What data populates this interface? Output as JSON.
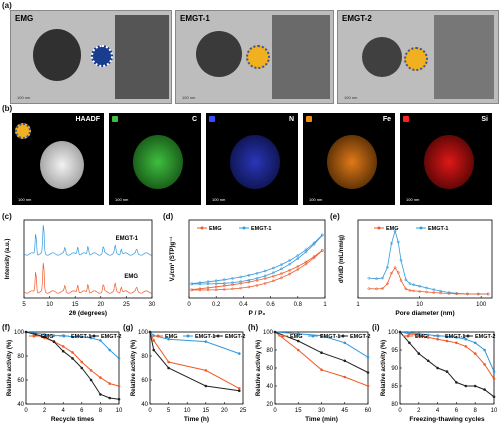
{
  "labels": {
    "a": "(a)",
    "b": "(b)",
    "c": "(c)",
    "d": "(d)",
    "e": "(e)",
    "f": "(f)",
    "g": "(g)",
    "h": "(h)",
    "i": "(i)"
  },
  "tem_panels": [
    {
      "title": "EMG",
      "scale": "100 nm"
    },
    {
      "title": "EMGT-1",
      "scale": "100 nm"
    },
    {
      "title": "EMGT-2",
      "scale": "100 nm"
    }
  ],
  "map_panels": [
    {
      "label": "HAADF",
      "scale": "100 nm",
      "color": "#ffffff"
    },
    {
      "label": "C",
      "scale": "100 nm",
      "color": "#3fbf3f"
    },
    {
      "label": "N",
      "scale": "100 nm",
      "color": "#3a4cff"
    },
    {
      "label": "Fe",
      "scale": "100 nm",
      "color": "#f08a1a"
    },
    {
      "label": "Si",
      "scale": "100 nm",
      "color": "#ff2020"
    }
  ],
  "colors": {
    "emg": "#f05a28",
    "emgt1": "#3399dd",
    "emgt2": "#222222"
  },
  "chart_data": [
    {
      "id": "c",
      "type": "line",
      "xlabel": "2θ (degrees)",
      "ylabel": "Intensity (a.u.)",
      "xlim": [
        5,
        30
      ],
      "xticks": [
        5,
        10,
        15,
        20,
        25,
        30
      ],
      "series": [
        {
          "name": "EMGT-1"
        },
        {
          "name": "EMG"
        }
      ]
    },
    {
      "id": "d",
      "type": "line",
      "xlabel": "P / P₀",
      "ylabel": "Vₐ/cm³ (STP)g⁻¹",
      "xlim": [
        0,
        1
      ],
      "xticks": [
        "0",
        "0.2",
        "0.4",
        "0.6",
        "0.8",
        "1"
      ],
      "series": [
        {
          "name": "EMG"
        },
        {
          "name": "EMGT-1"
        }
      ]
    },
    {
      "id": "e",
      "type": "line",
      "xlabel": "Pore diameter (nm)",
      "ylabel": "dV/dD (mL/nm/g)",
      "xscale": "log",
      "xticks": [
        "1",
        "10",
        "100"
      ],
      "series": [
        {
          "name": "EMG"
        },
        {
          "name": "EMGT-1"
        }
      ]
    },
    {
      "id": "f",
      "type": "line",
      "xlabel": "Recycle times",
      "ylabel": "Relative activity (%)",
      "xlim": [
        0,
        10
      ],
      "ylim": [
        40,
        100
      ],
      "xticks": [
        0,
        2,
        4,
        6,
        8,
        10
      ],
      "yticks": [
        40,
        60,
        80,
        100
      ],
      "series": [
        {
          "name": "EMG",
          "x": [
            0,
            1,
            2,
            3,
            4,
            5,
            6,
            7,
            8,
            9,
            10
          ],
          "values": [
            100,
            98,
            95,
            92,
            88,
            83,
            75,
            68,
            62,
            57,
            55
          ]
        },
        {
          "name": "EMGT-1",
          "x": [
            0,
            1,
            2,
            3,
            4,
            5,
            6,
            7,
            8,
            9,
            10
          ],
          "values": [
            100,
            99,
            98,
            97,
            97,
            96,
            96,
            95,
            93,
            85,
            78
          ]
        },
        {
          "name": "EMGT-2",
          "x": [
            0,
            1,
            2,
            3,
            4,
            5,
            6,
            7,
            8,
            9,
            10
          ],
          "values": [
            100,
            98,
            96,
            92,
            84,
            78,
            70,
            60,
            48,
            45,
            44
          ]
        }
      ]
    },
    {
      "id": "g",
      "type": "line",
      "xlabel": "Time (h)",
      "ylabel": "Relative activity (%)",
      "xlim": [
        0,
        25
      ],
      "ylim": [
        40,
        100
      ],
      "xticks": [
        0,
        5,
        10,
        15,
        20,
        25
      ],
      "yticks": [
        40,
        60,
        80,
        100
      ],
      "series": [
        {
          "name": "EMG",
          "x": [
            0,
            1,
            5,
            15,
            24
          ],
          "values": [
            100,
            93,
            75,
            68,
            53
          ]
        },
        {
          "name": "EMGT-1",
          "x": [
            0,
            1,
            5,
            15,
            24
          ],
          "values": [
            100,
            97,
            94,
            92,
            82
          ]
        },
        {
          "name": "EMGT-2",
          "x": [
            0,
            1,
            5,
            15,
            24
          ],
          "values": [
            100,
            85,
            70,
            55,
            51
          ]
        }
      ]
    },
    {
      "id": "h",
      "type": "line",
      "xlabel": "Time (min)",
      "ylabel": "Relative activity (%)",
      "xlim": [
        0,
        60
      ],
      "ylim": [
        20,
        100
      ],
      "xticks": [
        0,
        15,
        30,
        45,
        60
      ],
      "yticks": [
        20,
        40,
        60,
        80,
        100
      ],
      "series": [
        {
          "name": "EMG",
          "x": [
            0,
            15,
            30,
            45,
            60
          ],
          "values": [
            100,
            80,
            58,
            50,
            40
          ]
        },
        {
          "name": "EMGT-1",
          "x": [
            0,
            15,
            30,
            45,
            60
          ],
          "values": [
            100,
            98,
            96,
            88,
            72
          ]
        },
        {
          "name": "EMGT-2",
          "x": [
            0,
            15,
            30,
            45,
            60
          ],
          "values": [
            100,
            90,
            77,
            68,
            55
          ]
        }
      ]
    },
    {
      "id": "i",
      "type": "line",
      "xlabel": "Freezing-thawing cycles",
      "ylabel": "Relative activity (%)",
      "xlim": [
        0,
        10
      ],
      "ylim": [
        80,
        100
      ],
      "xticks": [
        0,
        2,
        4,
        6,
        8,
        10
      ],
      "yticks": [
        80,
        85,
        90,
        95,
        100
      ],
      "series": [
        {
          "name": "EMG",
          "x": [
            0,
            1,
            2,
            3,
            4,
            5,
            6,
            7,
            8,
            9,
            10
          ],
          "values": [
            100,
            99.5,
            99,
            98.5,
            98,
            97.5,
            97,
            96,
            94,
            91,
            87
          ]
        },
        {
          "name": "EMGT-1",
          "x": [
            0,
            1,
            2,
            3,
            4,
            5,
            6,
            7,
            8,
            9,
            10
          ],
          "values": [
            100,
            99.8,
            99.5,
            99.2,
            99,
            98.8,
            98.5,
            98,
            97,
            95,
            89
          ]
        },
        {
          "name": "EMGT-2",
          "x": [
            0,
            1,
            2,
            3,
            4,
            5,
            6,
            7,
            8,
            9,
            10
          ],
          "values": [
            100,
            97,
            94,
            92,
            90,
            89,
            86,
            85,
            85,
            84,
            82
          ]
        }
      ]
    }
  ]
}
